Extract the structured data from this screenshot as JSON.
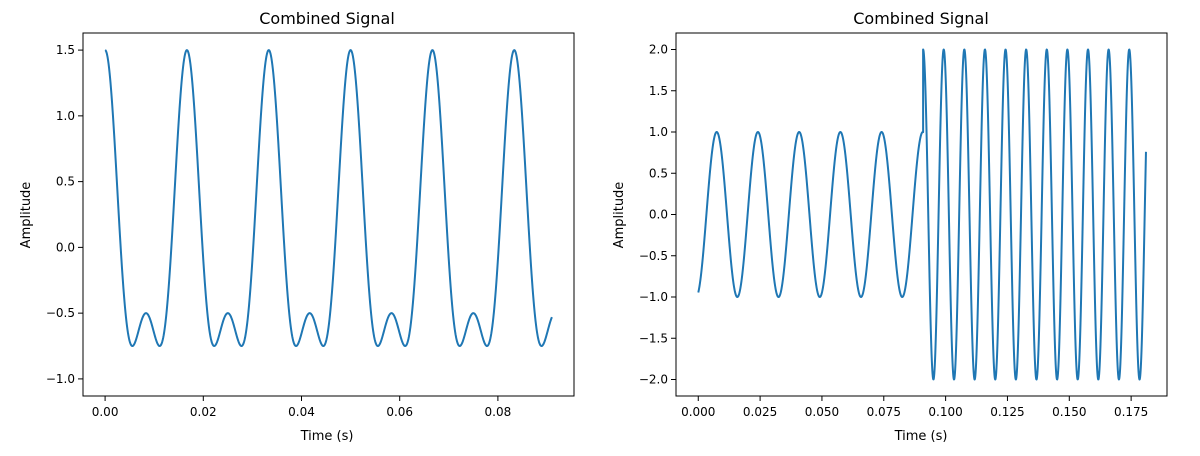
{
  "chart_data": [
    {
      "type": "line",
      "title": "Combined Signal",
      "xlabel": "Time (s)",
      "ylabel": "Amplitude",
      "xlim": [
        -0.0045,
        0.0955
      ],
      "ylim": [
        -1.13,
        1.63
      ],
      "xticks": [
        0.0,
        0.02,
        0.04,
        0.06,
        0.08
      ],
      "xtick_labels": [
        "0.00",
        "0.02",
        "0.04",
        "0.06",
        "0.08"
      ],
      "yticks": [
        -1.0,
        -0.5,
        0.0,
        0.5,
        1.0,
        1.5
      ],
      "ytick_labels": [
        "−1.0",
        "−0.5",
        "0.0",
        "0.5",
        "1.0",
        "1.5"
      ],
      "grid": false,
      "series": [
        {
          "color": "#1f77b4",
          "formula": "cos(2*pi*60*t) + 0.5*cos(2*pi*120*t)",
          "t_start": 0.0,
          "t_end": 0.091,
          "samples": 900
        }
      ]
    },
    {
      "type": "line",
      "title": "Combined Signal",
      "xlabel": "Time (s)",
      "ylabel": "Amplitude",
      "xlim": [
        -0.009,
        0.1895
      ],
      "ylim": [
        -2.2,
        2.2
      ],
      "xticks": [
        0.0,
        0.025,
        0.05,
        0.075,
        0.1,
        0.125,
        0.15,
        0.175
      ],
      "xtick_labels": [
        "0.000",
        "0.025",
        "0.050",
        "0.075",
        "0.100",
        "0.125",
        "0.150",
        "0.175"
      ],
      "yticks": [
        -2.0,
        -1.5,
        -1.0,
        -0.5,
        0.0,
        0.5,
        1.0,
        1.5,
        2.0
      ],
      "ytick_labels": [
        "−2.0",
        "−1.5",
        "−1.0",
        "−0.5",
        "0.0",
        "0.5",
        "1.0",
        "1.5",
        "2.0"
      ],
      "grid": false,
      "series": [
        {
          "color": "#1f77b4",
          "segments": [
            {
              "formula": "sin(2*pi*60*t - 1.24)",
              "t_start": 0.0,
              "t_end": 0.0909
            },
            {
              "formula": "2*sin(2*pi*120*(t - 0.0909) + 1.571)",
              "t_start": 0.0909,
              "t_end": 0.181
            }
          ],
          "samples": 1800
        }
      ]
    }
  ]
}
